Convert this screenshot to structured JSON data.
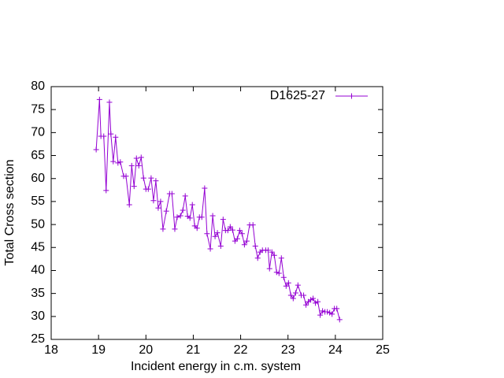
{
  "chart_data": {
    "type": "line",
    "x_label": "Incident energy in c.m. system",
    "y_label": "Total Cross section",
    "xlim": [
      18,
      25
    ],
    "xticks": [
      18,
      19,
      20,
      21,
      22,
      23,
      24,
      25
    ],
    "ylim": [
      25,
      80
    ],
    "yticks": [
      25,
      30,
      35,
      40,
      45,
      50,
      55,
      60,
      65,
      70,
      75,
      80
    ],
    "legend": "top-right",
    "x": [
      18.95,
      19.02,
      19.05,
      19.11,
      19.16,
      19.23,
      19.26,
      19.31,
      19.36,
      19.41,
      19.46,
      19.53,
      19.58,
      19.65,
      19.7,
      19.75,
      19.8,
      19.85,
      19.9,
      19.95,
      20.0,
      20.05,
      20.11,
      20.16,
      20.21,
      20.26,
      20.31,
      20.36,
      20.43,
      20.5,
      20.55,
      20.61,
      20.66,
      20.73,
      20.78,
      20.83,
      20.88,
      20.93,
      20.98,
      21.03,
      21.08,
      21.13,
      21.18,
      21.24,
      21.29,
      21.36,
      21.41,
      21.46,
      21.51,
      21.58,
      21.63,
      21.68,
      21.73,
      21.78,
      21.83,
      21.88,
      21.93,
      21.98,
      22.03,
      22.08,
      22.13,
      22.19,
      22.26,
      22.31,
      22.36,
      22.41,
      22.46,
      22.53,
      22.58,
      22.61,
      22.66,
      22.71,
      22.76,
      22.81,
      22.86,
      22.91,
      22.96,
      23.01,
      23.06,
      23.11,
      23.16,
      23.21,
      23.28,
      23.33,
      23.38,
      23.43,
      23.48,
      23.53,
      23.58,
      23.63,
      23.68,
      23.73,
      23.78,
      23.83,
      23.88,
      23.93,
      23.98,
      24.03,
      24.09
    ],
    "series": [
      {
        "name": "D1625-27",
        "color": "#9400d3",
        "values": [
          66.3,
          77.2,
          69.2,
          69.2,
          57.4,
          76.6,
          69.7,
          63.7,
          69.0,
          63.4,
          63.6,
          60.5,
          60.5,
          54.3,
          62.8,
          58.3,
          64.4,
          62.8,
          64.6,
          60.1,
          57.7,
          57.7,
          60.1,
          55.2,
          59.5,
          53.6,
          55.0,
          49.0,
          52.9,
          56.7,
          56.7,
          49.0,
          51.6,
          51.9,
          53.1,
          56.2,
          51.8,
          51.4,
          54.3,
          49.7,
          49.2,
          51.6,
          51.6,
          57.9,
          48.0,
          44.7,
          51.9,
          47.4,
          48.2,
          45.3,
          51.1,
          48.7,
          48.7,
          49.5,
          48.8,
          46.4,
          46.9,
          48.7,
          48.0,
          45.6,
          46.4,
          49.9,
          49.9,
          45.3,
          42.7,
          44.0,
          44.4,
          44.4,
          44.4,
          40.4,
          44.0,
          43.3,
          39.6,
          39.4,
          42.7,
          38.5,
          36.6,
          37.3,
          34.6,
          33.9,
          35.1,
          36.8,
          34.6,
          34.6,
          32.5,
          33.2,
          33.6,
          33.9,
          32.9,
          33.2,
          30.3,
          31.2,
          31.0,
          31.0,
          30.8,
          30.5,
          31.7,
          31.7,
          29.3
        ]
      }
    ]
  }
}
